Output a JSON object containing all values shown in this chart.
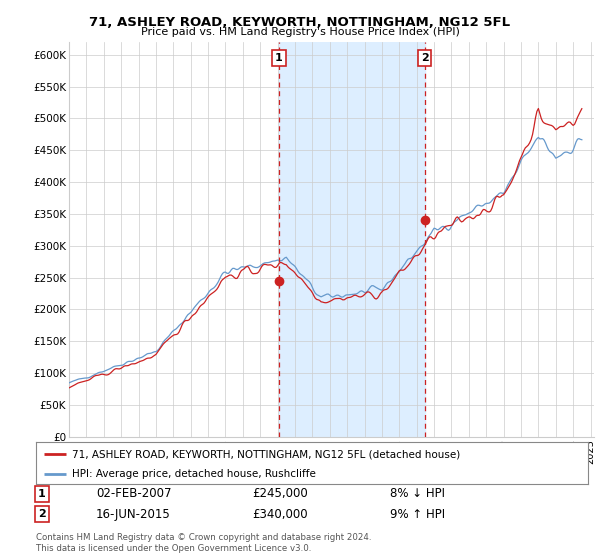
{
  "title": "71, ASHLEY ROAD, KEYWORTH, NOTTINGHAM, NG12 5FL",
  "subtitle": "Price paid vs. HM Land Registry's House Price Index (HPI)",
  "ylim": [
    0,
    620000
  ],
  "yticks": [
    0,
    50000,
    100000,
    150000,
    200000,
    250000,
    300000,
    350000,
    400000,
    450000,
    500000,
    550000,
    600000
  ],
  "xlim_start": 1995.0,
  "xlim_end": 2025.2,
  "sale1_x": 2007.08,
  "sale1_y": 245000,
  "sale2_x": 2015.46,
  "sale2_y": 340000,
  "sale1_date": "02-FEB-2007",
  "sale1_price": "£245,000",
  "sale1_hpi": "8% ↓ HPI",
  "sale2_date": "16-JUN-2015",
  "sale2_price": "£340,000",
  "sale2_hpi": "9% ↑ HPI",
  "line1_color": "#cc2222",
  "line2_color": "#6699cc",
  "shade_color": "#ddeeff",
  "plot_bg": "#ffffff",
  "grid_color": "#cccccc",
  "legend_line1": "71, ASHLEY ROAD, KEYWORTH, NOTTINGHAM, NG12 5FL (detached house)",
  "legend_line2": "HPI: Average price, detached house, Rushcliffe",
  "footer": "Contains HM Land Registry data © Crown copyright and database right 2024.\nThis data is licensed under the Open Government Licence v3.0.",
  "seed": 42
}
